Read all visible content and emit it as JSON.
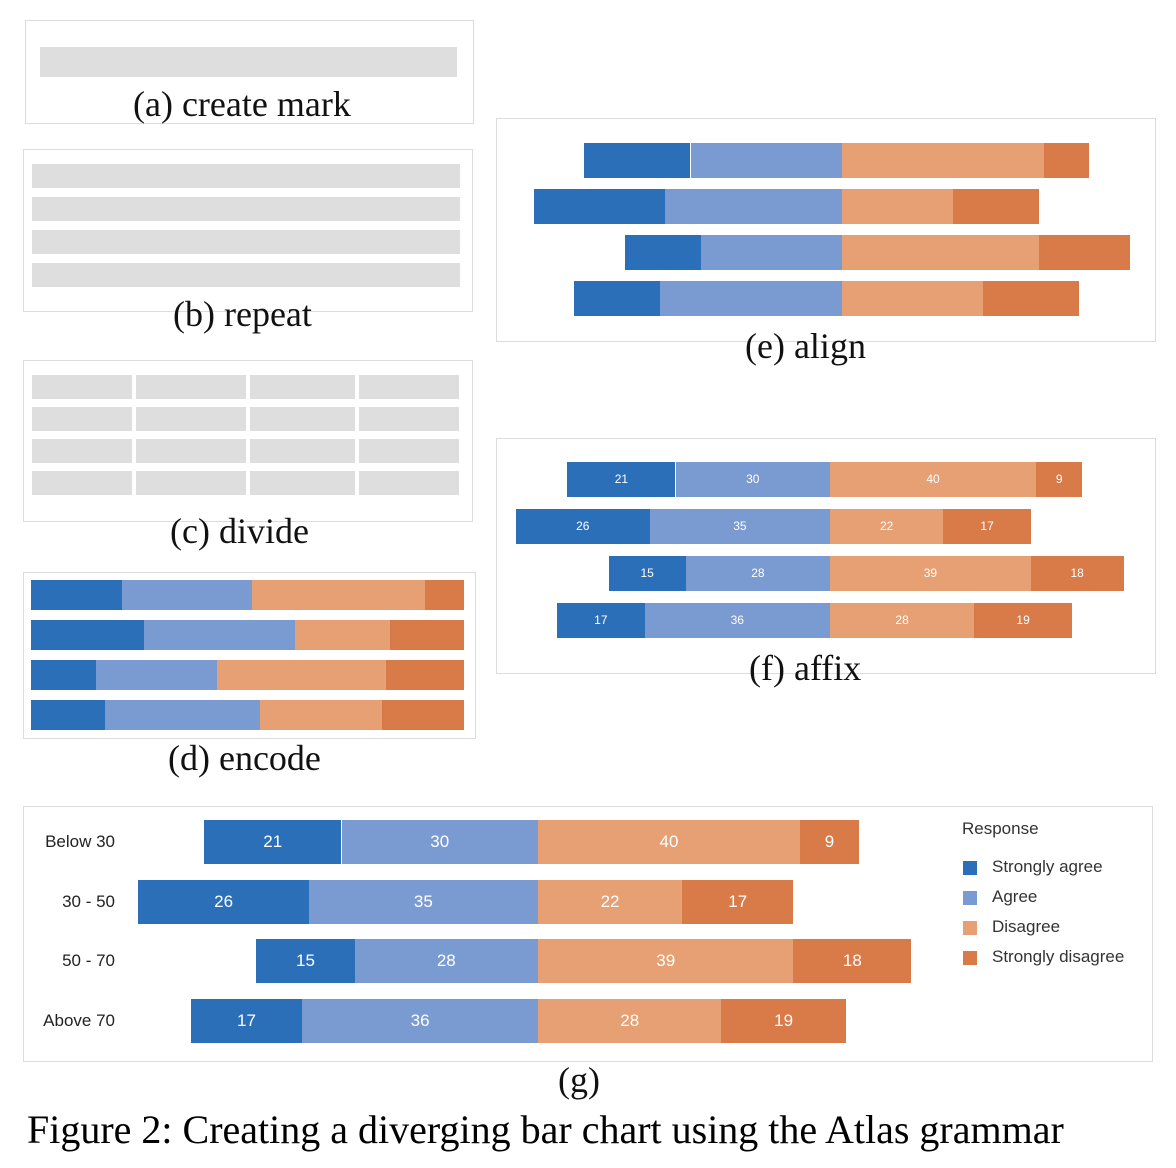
{
  "panels": {
    "a": "(a) create mark",
    "b": "(b) repeat",
    "c": "(c) divide",
    "d": "(d) encode",
    "e": "(e) align",
    "f": "(f) affix",
    "g": "(g)"
  },
  "figure_caption": "Figure 2: Creating a diverging bar chart using the Atlas grammar",
  "colors": {
    "strongly_agree": "#2c6fb9",
    "agree": "#7a9bd1",
    "disagree": "#e6a074",
    "strongly_disagree": "#d97b48",
    "placeholder": "#dedede"
  },
  "chart_data": {
    "type": "bar",
    "orientation": "horizontal-diverging",
    "categories": [
      "Below 30",
      "30 - 50",
      "50 - 70",
      "Above 70"
    ],
    "series": [
      {
        "name": "Strongly agree",
        "values": [
          21,
          26,
          15,
          17
        ]
      },
      {
        "name": "Agree",
        "values": [
          30,
          35,
          28,
          36
        ]
      },
      {
        "name": "Disagree",
        "values": [
          40,
          22,
          39,
          28
        ]
      },
      {
        "name": "Strongly disagree",
        "values": [
          9,
          17,
          18,
          19
        ]
      }
    ],
    "legend_title": "Response",
    "legend_position": "right"
  }
}
